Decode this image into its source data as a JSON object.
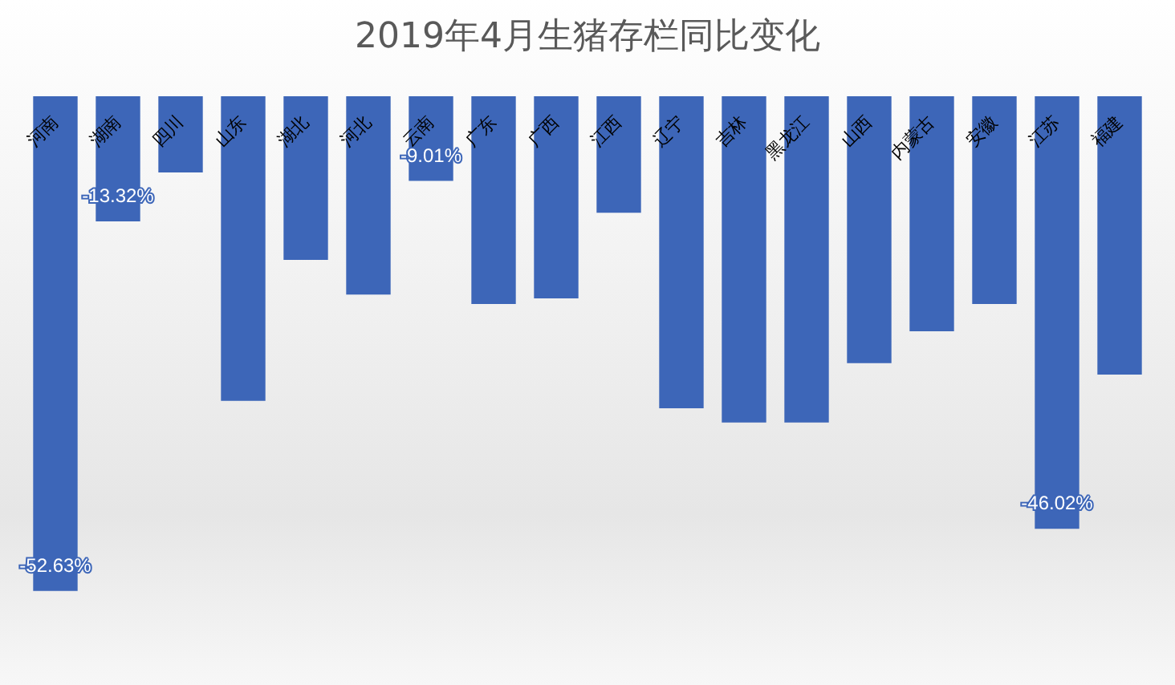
{
  "chart_data": {
    "type": "bar",
    "title": "2019年4月生猪存栏同比变化",
    "categories": [
      "河南",
      "湖南",
      "四川",
      "山东",
      "湖北",
      "河北",
      "云南",
      "广东",
      "广西",
      "江西",
      "辽宁",
      "吉林",
      "黑龙江",
      "山西",
      "内蒙古",
      "安徽",
      "江苏",
      "福建"
    ],
    "values": [
      -52.63,
      -13.32,
      -8.1,
      -32.4,
      -17.4,
      -21.1,
      -9.01,
      -22.1,
      -21.5,
      -12.4,
      -33.2,
      -34.7,
      -34.7,
      -28.4,
      -25.0,
      -22.1,
      -46.02,
      -29.6
    ],
    "value_labels": [
      "-52.63%",
      "-13.32%",
      null,
      null,
      null,
      null,
      "-9.01%",
      null,
      null,
      null,
      null,
      null,
      null,
      null,
      null,
      null,
      "-46.02%",
      null
    ],
    "color": "#3d66b8"
  }
}
